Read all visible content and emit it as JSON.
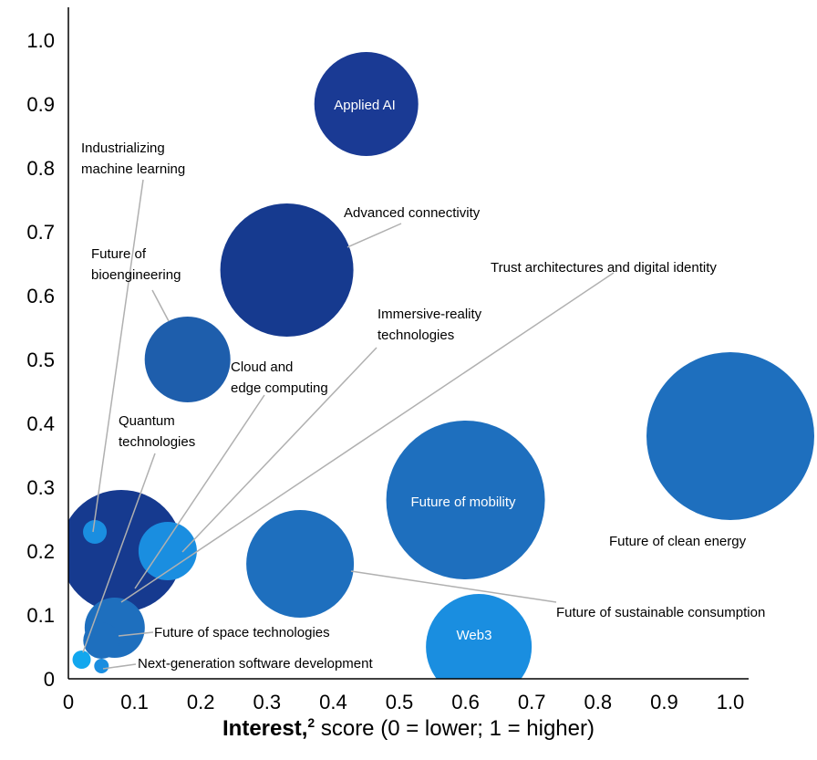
{
  "chart_data": {
    "type": "scatter",
    "xlabel": {
      "bold": "Interest,",
      "sup": "2",
      "rest": " score (0 = lower; 1 = higher)"
    },
    "ylabel": "",
    "xlim": [
      0,
      1.0
    ],
    "ylim": [
      0,
      1.0
    ],
    "x_ticks": [
      "0",
      "0.1",
      "0.2",
      "0.3",
      "0.4",
      "0.5",
      "0.6",
      "0.7",
      "0.8",
      "0.9",
      "1.0"
    ],
    "y_ticks": [
      "0",
      "0.1",
      "0.2",
      "0.3",
      "0.4",
      "0.5",
      "0.6",
      "0.7",
      "0.8",
      "0.9",
      "1.0"
    ],
    "grid": false,
    "points": [
      {
        "label": "Applied AI",
        "x": 0.45,
        "y": 0.9,
        "size": 0.66,
        "color": "#1a3a94",
        "label_inside": true
      },
      {
        "label": "Advanced connectivity",
        "x": 0.33,
        "y": 0.64,
        "size": 0.76,
        "color": "#163a8f",
        "label_inside": false
      },
      {
        "label": "Future of clean energy",
        "x": 1.0,
        "y": 0.38,
        "size": 1.0,
        "color": "#1e6fbe",
        "label_inside": false
      },
      {
        "label": "Future of mobility",
        "x": 0.6,
        "y": 0.28,
        "size": 0.85,
        "color": "#1e6fbe",
        "label_inside": true
      },
      {
        "label": "Web3",
        "x": 0.62,
        "y": 0.05,
        "size": 0.45,
        "color": "#1a8ee0",
        "label_inside": true
      },
      {
        "label": "Future of sustainable consumption",
        "x": 0.35,
        "y": 0.18,
        "size": 0.43,
        "color": "#1e6fbe",
        "label_inside": false
      },
      {
        "label": "Cloud and edge computing",
        "x": 0.18,
        "y": 0.5,
        "size": 0.2,
        "color": "#1e5eac",
        "label_inside": false
      },
      {
        "label": "Future of bioengineering",
        "x": 0.08,
        "y": 0.2,
        "size": 0.4,
        "color": "#163a8f",
        "label_inside": false
      },
      {
        "label": "Immersive-reality technologies",
        "x": 0.15,
        "y": 0.2,
        "size": 0.09,
        "color": "#1a8ee0",
        "label_inside": false
      },
      {
        "label": "Trust architectures and digital identity",
        "x": 0.07,
        "y": 0.08,
        "size": 0.1,
        "color": "#1e6fbe",
        "label_inside": false
      },
      {
        "label": "Future of space technologies",
        "x": 0.05,
        "y": 0.06,
        "size": 0.04,
        "color": "#1e6fbe",
        "label_inside": false
      },
      {
        "label": "Industrializing machine learning",
        "x": 0.04,
        "y": 0.23,
        "size": 0.015,
        "color": "#1a8ee0",
        "label_inside": false
      },
      {
        "label": "Quantum technologies",
        "x": 0.02,
        "y": 0.03,
        "size": 0.008,
        "color": "#12a7ee",
        "label_inside": false
      },
      {
        "label": "Next-generation software development",
        "x": 0.05,
        "y": 0.02,
        "size": 0.004,
        "color": "#1a8ee0",
        "label_inside": false
      }
    ],
    "annotations": [
      {
        "text": [
          "Applied AI"
        ],
        "inside": true
      },
      {
        "text": [
          "Advanced connectivity"
        ]
      },
      {
        "text": [
          "Trust architectures and digital identity"
        ]
      },
      {
        "text": [
          "Industrializing",
          "machine learning"
        ]
      },
      {
        "text": [
          "Future of",
          "bioengineering"
        ]
      },
      {
        "text": [
          "Immersive-reality",
          "technologies"
        ]
      },
      {
        "text": [
          "Cloud and",
          "edge computing"
        ]
      },
      {
        "text": [
          "Quantum",
          "technologies"
        ]
      },
      {
        "text": [
          "Future of mobility"
        ],
        "inside": true
      },
      {
        "text": [
          "Future of clean energy"
        ]
      },
      {
        "text": [
          "Future of sustainable consumption"
        ]
      },
      {
        "text": [
          "Web3"
        ],
        "inside": true
      },
      {
        "text": [
          "Future of space technologies"
        ]
      },
      {
        "text": [
          "Next-generation software development"
        ]
      }
    ]
  }
}
